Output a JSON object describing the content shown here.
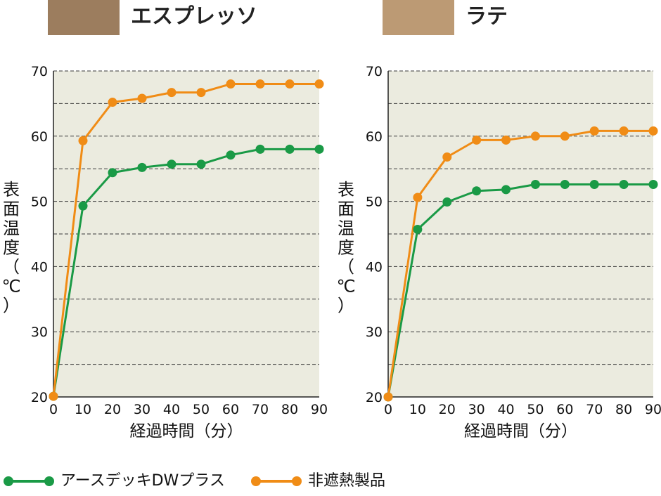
{
  "charts": [
    {
      "title": "エスプレッソ",
      "swatch_color": "#9c7d5e",
      "chart_data": {
        "type": "line",
        "title": "エスプレッソ",
        "xlabel": "経過時間（分）",
        "ylabel": "表面温度（℃）",
        "x": [
          0,
          10,
          20,
          30,
          40,
          50,
          60,
          70,
          80,
          90
        ],
        "xlim": [
          0,
          90
        ],
        "ylim": [
          20,
          70
        ],
        "yticks": [
          20,
          30,
          40,
          50,
          60,
          70
        ],
        "xticks": [
          0,
          10,
          20,
          30,
          40,
          50,
          60,
          70,
          80,
          90
        ],
        "grid": "dashed horizontal every 5",
        "series": [
          {
            "name": "アースデッキDWプラス",
            "color": "#1a9a46",
            "values": [
              20.1,
              49.3,
              54.4,
              55.2,
              55.7,
              55.7,
              57.1,
              58.0,
              58.0,
              58.0
            ]
          },
          {
            "name": "非遮熱製品",
            "color": "#f08c16",
            "values": [
              20.1,
              59.3,
              65.2,
              65.8,
              66.7,
              66.7,
              68.0,
              68.0,
              68.0,
              68.0
            ]
          }
        ]
      }
    },
    {
      "title": "ラテ",
      "swatch_color": "#bc9a74",
      "chart_data": {
        "type": "line",
        "title": "ラテ",
        "xlabel": "経過時間（分）",
        "ylabel": "表面温度（℃）",
        "x": [
          0,
          10,
          20,
          30,
          40,
          50,
          60,
          70,
          80,
          90
        ],
        "xlim": [
          0,
          90
        ],
        "ylim": [
          20,
          70
        ],
        "yticks": [
          20,
          30,
          40,
          50,
          60,
          70
        ],
        "xticks": [
          0,
          10,
          20,
          30,
          40,
          50,
          60,
          70,
          80,
          90
        ],
        "grid": "dashed horizontal every 5",
        "series": [
          {
            "name": "アースデッキDWプラス",
            "color": "#1a9a46",
            "values": [
              20.0,
              45.7,
              49.9,
              51.6,
              51.8,
              52.6,
              52.6,
              52.6,
              52.6,
              52.6
            ]
          },
          {
            "name": "非遮熱製品",
            "color": "#f08c16",
            "values": [
              20.0,
              50.6,
              56.8,
              59.4,
              59.4,
              60.0,
              60.0,
              60.8,
              60.8,
              60.8
            ]
          }
        ]
      }
    }
  ],
  "legend": [
    {
      "label": "アースデッキDWプラス",
      "color": "#1a9a46"
    },
    {
      "label": "非遮熱製品",
      "color": "#f08c16"
    }
  ],
  "plot_bg": "#ebebdf"
}
